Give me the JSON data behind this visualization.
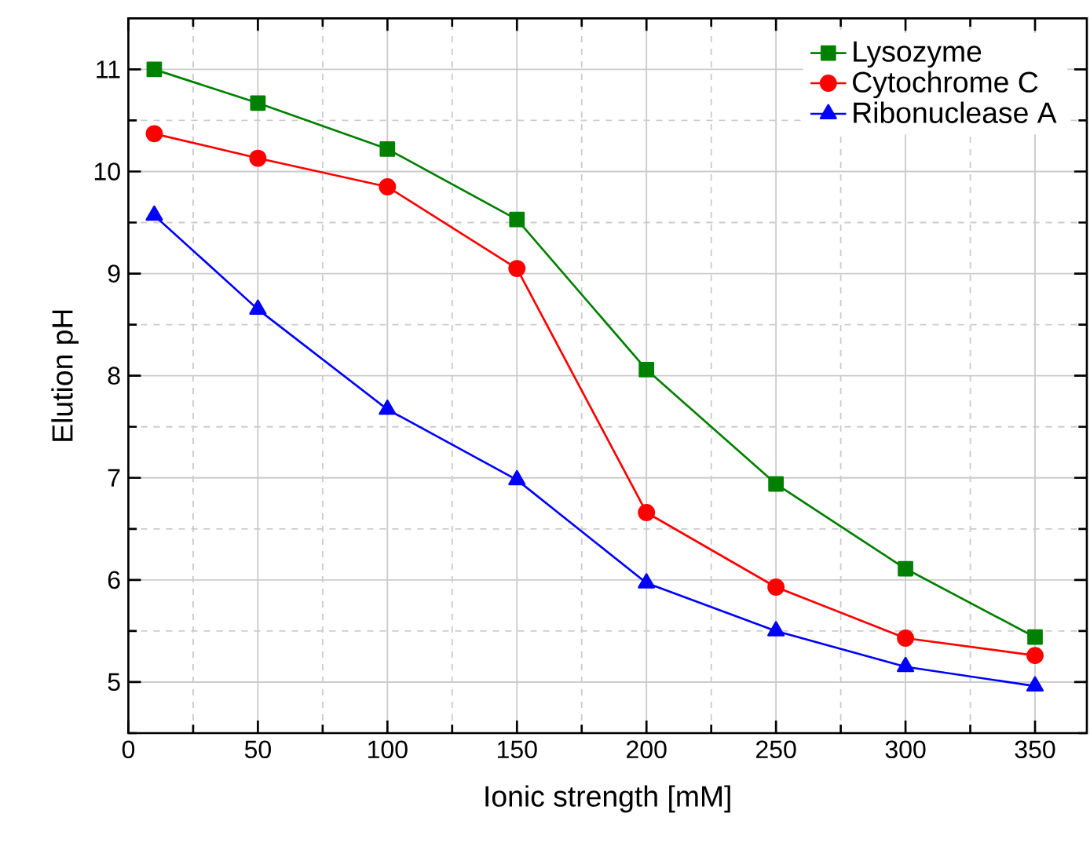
{
  "chart_data": {
    "type": "line",
    "xlabel": "Ionic strength [mM]",
    "ylabel": "Elution pH",
    "x": [
      10,
      50,
      100,
      150,
      200,
      250,
      300,
      350
    ],
    "series": [
      {
        "name": "Lysozyme",
        "color": "#008000",
        "marker": "square",
        "values": [
          11.0,
          10.67,
          10.22,
          9.53,
          8.06,
          6.94,
          6.11,
          5.44
        ]
      },
      {
        "name": "Cytochrome C",
        "color": "#ff0000",
        "marker": "circle",
        "values": [
          10.37,
          10.13,
          9.85,
          9.05,
          6.66,
          5.93,
          5.43,
          5.26
        ]
      },
      {
        "name": "Ribonuclease A",
        "color": "#0000ff",
        "marker": "triangle",
        "values": [
          9.57,
          8.65,
          7.67,
          6.98,
          5.97,
          5.5,
          5.15,
          4.96
        ]
      }
    ],
    "xlim": [
      0,
      370
    ],
    "ylim": [
      4.5,
      11.5
    ],
    "xticks": [
      0,
      {
        "value": 25,
        "label": null
      },
      50,
      {
        "value": 75,
        "label": null
      },
      100,
      {
        "value": 125,
        "label": null
      },
      150,
      {
        "value": 175,
        "label": null
      },
      200,
      {
        "value": 225,
        "label": null
      },
      250,
      {
        "value": 275,
        "label": null
      },
      300,
      {
        "value": 325,
        "label": null
      },
      350
    ],
    "yticks": [
      {
        "value": 4.5,
        "label": null
      },
      5,
      {
        "value": 5.5,
        "label": null
      },
      6,
      {
        "value": 6.5,
        "label": null
      },
      7,
      {
        "value": 7.5,
        "label": null
      },
      8,
      {
        "value": 8.5,
        "label": null
      },
      9,
      {
        "value": 9.5,
        "label": null
      },
      10,
      {
        "value": 10.5,
        "label": null
      },
      11
    ],
    "grid": true,
    "legend": "top right",
    "line_style": "solid"
  }
}
